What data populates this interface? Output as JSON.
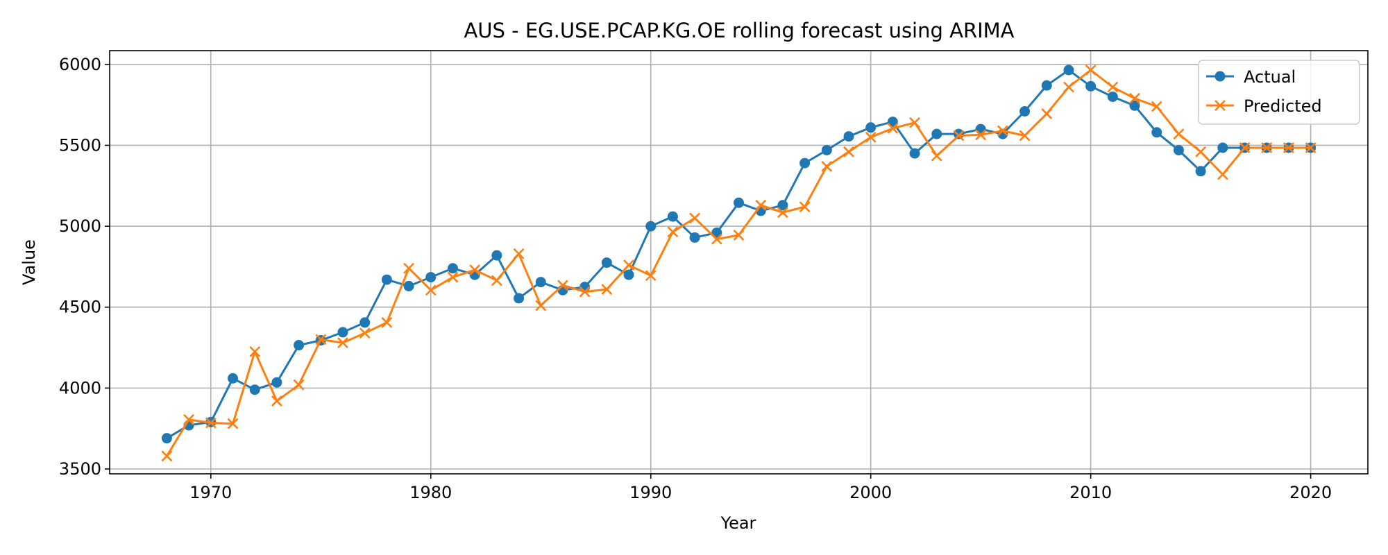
{
  "chart_data": {
    "type": "line",
    "title": "AUS - EG.USE.PCAP.KG.OE rolling forecast using ARIMA",
    "xlabel": "Year",
    "ylabel": "Value",
    "xlim": [
      1965.4,
      2022.6
    ],
    "ylim": [
      3470,
      6085
    ],
    "xticks": [
      1970,
      1980,
      1990,
      2000,
      2010,
      2020
    ],
    "yticks": [
      3500,
      4000,
      4500,
      5000,
      5500,
      6000
    ],
    "grid": true,
    "legend_position": "top-right",
    "x": [
      1968,
      1969,
      1970,
      1971,
      1972,
      1973,
      1974,
      1975,
      1976,
      1977,
      1978,
      1979,
      1980,
      1981,
      1982,
      1983,
      1984,
      1985,
      1986,
      1987,
      1988,
      1989,
      1990,
      1991,
      1992,
      1993,
      1994,
      1995,
      1996,
      1997,
      1998,
      1999,
      2000,
      2001,
      2002,
      2003,
      2004,
      2005,
      2006,
      2007,
      2008,
      2009,
      2010,
      2011,
      2012,
      2013,
      2014,
      2015,
      2016,
      2017,
      2018,
      2019,
      2020
    ],
    "series": [
      {
        "name": "Actual",
        "color": "#1f77b4",
        "marker": "circle",
        "values": [
          3690,
          3770,
          3790,
          4060,
          3990,
          4035,
          4265,
          4295,
          4345,
          4405,
          4670,
          4630,
          4685,
          4740,
          4700,
          4820,
          4555,
          4655,
          4605,
          4625,
          4775,
          4700,
          5000,
          5060,
          4930,
          4960,
          5145,
          5095,
          5130,
          5390,
          5470,
          5555,
          5610,
          5645,
          5450,
          5570,
          5570,
          5600,
          5570,
          5710,
          5870,
          5965,
          5865,
          5800,
          5745,
          5580,
          5470,
          5340,
          5485,
          5485,
          5485,
          5485,
          5485
        ]
      },
      {
        "name": "Predicted",
        "color": "#ff7f0e",
        "marker": "x",
        "values": [
          3580,
          3805,
          3785,
          3780,
          4225,
          3920,
          4020,
          4300,
          4280,
          4340,
          4405,
          4740,
          4605,
          4685,
          4730,
          4665,
          4830,
          4510,
          4635,
          4595,
          4610,
          4760,
          4695,
          4965,
          5050,
          4920,
          4945,
          5130,
          5085,
          5120,
          5370,
          5460,
          5550,
          5605,
          5640,
          5435,
          5560,
          5565,
          5590,
          5560,
          5695,
          5860,
          5965,
          5860,
          5790,
          5740,
          5570,
          5460,
          5320,
          5485,
          5485,
          5485,
          5485
        ]
      }
    ]
  }
}
